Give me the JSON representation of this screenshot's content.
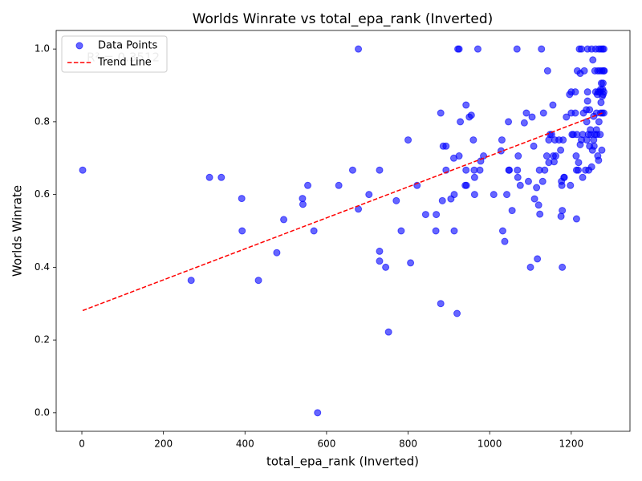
{
  "chart_data": {
    "type": "scatter",
    "title": "Worlds Winrate vs total_epa_rank (Inverted)",
    "x_label": "total_epa_rank (Inverted)",
    "y_label": "Worlds Winrate",
    "annotation": "R² = 0.3512",
    "legend": "upper left",
    "grid": false,
    "xlim": [
      -63,
      1344
    ],
    "ylim": [
      -0.051,
      1.051
    ],
    "xticks": [
      0,
      200,
      400,
      600,
      800,
      1000,
      1200
    ],
    "yticks": [
      {
        "value": 0,
        "label": "0.0"
      },
      0.2,
      0.4,
      0.6,
      0.8,
      {
        "value": 1,
        "label": "1.0"
      }
    ],
    "series": [
      {
        "name": "Data Points",
        "color": "#0000ff",
        "kind": "points",
        "x": [
          2,
          268,
          313,
          342,
          392,
          393,
          433,
          478,
          495,
          541,
          542,
          554,
          569,
          578,
          630,
          664,
          678,
          678,
          704,
          730,
          730,
          730,
          745,
          752,
          771,
          783,
          800,
          806,
          822,
          843,
          868,
          869,
          880,
          880,
          884,
          886,
          893,
          893,
          905,
          912,
          913,
          913,
          920,
          922,
          925,
          925,
          928,
          940,
          942,
          942,
          943,
          950,
          955,
          960,
          962,
          963,
          963,
          971,
          976,
          978,
          985,
          1010,
          1028,
          1030,
          1032,
          1037,
          1042,
          1046,
          1047,
          1048,
          1055,
          1067,
          1068,
          1069,
          1070,
          1075,
          1085,
          1090,
          1095,
          1100,
          1104,
          1108,
          1110,
          1115,
          1117,
          1120,
          1122,
          1123,
          1127,
          1130,
          1132,
          1135,
          1140,
          1142,
          1145,
          1145,
          1148,
          1152,
          1155,
          1156,
          1158,
          1160,
          1162,
          1170,
          1174,
          1175,
          1176,
          1177,
          1178,
          1178,
          1180,
          1182,
          1183,
          1188,
          1196,
          1198,
          1200,
          1200,
          1202,
          1205,
          1210,
          1210,
          1212,
          1213,
          1213,
          1214,
          1215,
          1217,
          1218,
          1220,
          1222,
          1222,
          1225,
          1225,
          1228,
          1228,
          1230,
          1232,
          1235,
          1237,
          1238,
          1238,
          1240,
          1240,
          1240,
          1242,
          1243,
          1245,
          1245,
          1247,
          1248,
          1250,
          1250,
          1252,
          1253,
          1255,
          1255,
          1256,
          1258,
          1258,
          1260,
          1260,
          1262,
          1262,
          1263,
          1264,
          1265,
          1265,
          1266,
          1267,
          1268,
          1268,
          1270,
          1270,
          1271,
          1272,
          1272,
          1273,
          1273,
          1274,
          1275,
          1275,
          1276,
          1276,
          1277,
          1277,
          1278,
          1278,
          1279,
          1280,
          1280,
          1280,
          1281
        ],
        "values": [
          0.667,
          0.364,
          0.647,
          0.647,
          0.589,
          0.5,
          0.364,
          0.44,
          0.531,
          0.589,
          0.573,
          0.625,
          0.5,
          0,
          0.625,
          0.667,
          0.56,
          1.0,
          0.6,
          0.667,
          0.444,
          0.417,
          0.4,
          0.222,
          0.583,
          0.5,
          0.75,
          0.412,
          0.625,
          0.545,
          0.5,
          0.545,
          0.3,
          0.824,
          0.583,
          0.733,
          0.733,
          0.667,
          0.588,
          0.7,
          0.6,
          0.5,
          0.273,
          1.0,
          1.0,
          0.706,
          0.8,
          0.625,
          0.667,
          0.846,
          0.625,
          0.813,
          0.818,
          0.75,
          0.667,
          0.647,
          0.6,
          1.0,
          0.667,
          0.692,
          0.706,
          0.6,
          0.72,
          0.75,
          0.5,
          0.471,
          0.6,
          0.8,
          0.667,
          0.667,
          0.556,
          1.0,
          0.667,
          0.647,
          0.706,
          0.625,
          0.797,
          0.824,
          0.636,
          0.4,
          0.813,
          0.733,
          0.588,
          0.619,
          0.423,
          0.571,
          0.667,
          0.546,
          1.0,
          0.636,
          0.824,
          0.667,
          0.706,
          0.94,
          0.688,
          0.75,
          0.765,
          0.765,
          0.846,
          0.706,
          0.69,
          0.75,
          0.706,
          0.75,
          0.722,
          0.54,
          0.636,
          0.625,
          0.556,
          0.4,
          0.75,
          0.647,
          0.647,
          0.813,
          0.875,
          0.625,
          0.824,
          0.882,
          0.765,
          0.765,
          0.882,
          0.824,
          0.706,
          0.667,
          0.533,
          0.765,
          0.94,
          0.667,
          0.688,
          1.0,
          0.933,
          0.737,
          0.75,
          1.0,
          0.647,
          0.765,
          0.824,
          0.94,
          0.667,
          0.833,
          0.8,
          0.75,
          0.882,
          0.857,
          1.0,
          0.765,
          0.667,
          0.733,
          0.833,
          0.778,
          0.765,
          0.676,
          1.0,
          0.722,
          0.97,
          0.815,
          0.75,
          0.733,
          0.765,
          0.94,
          0.882,
          1.0,
          0.778,
          0.824,
          0.765,
          0.875,
          0.94,
          0.706,
          0.882,
          0.694,
          0.8,
          1.0,
          0.882,
          0.94,
          0.765,
          0.824,
          0.889,
          0.853,
          1.0,
          0.906,
          0.722,
          0.94,
          0.87,
          0.824,
          0.889,
          1.0,
          0.906,
          0.875,
          0.94,
          1.0,
          0.824,
          0.882,
          0.94
        ]
      },
      {
        "name": "Trend Line",
        "color": "#ff0000",
        "kind": "line",
        "x": [
          2,
          1281
        ],
        "values": [
          0.281,
          0.826
        ]
      }
    ]
  }
}
